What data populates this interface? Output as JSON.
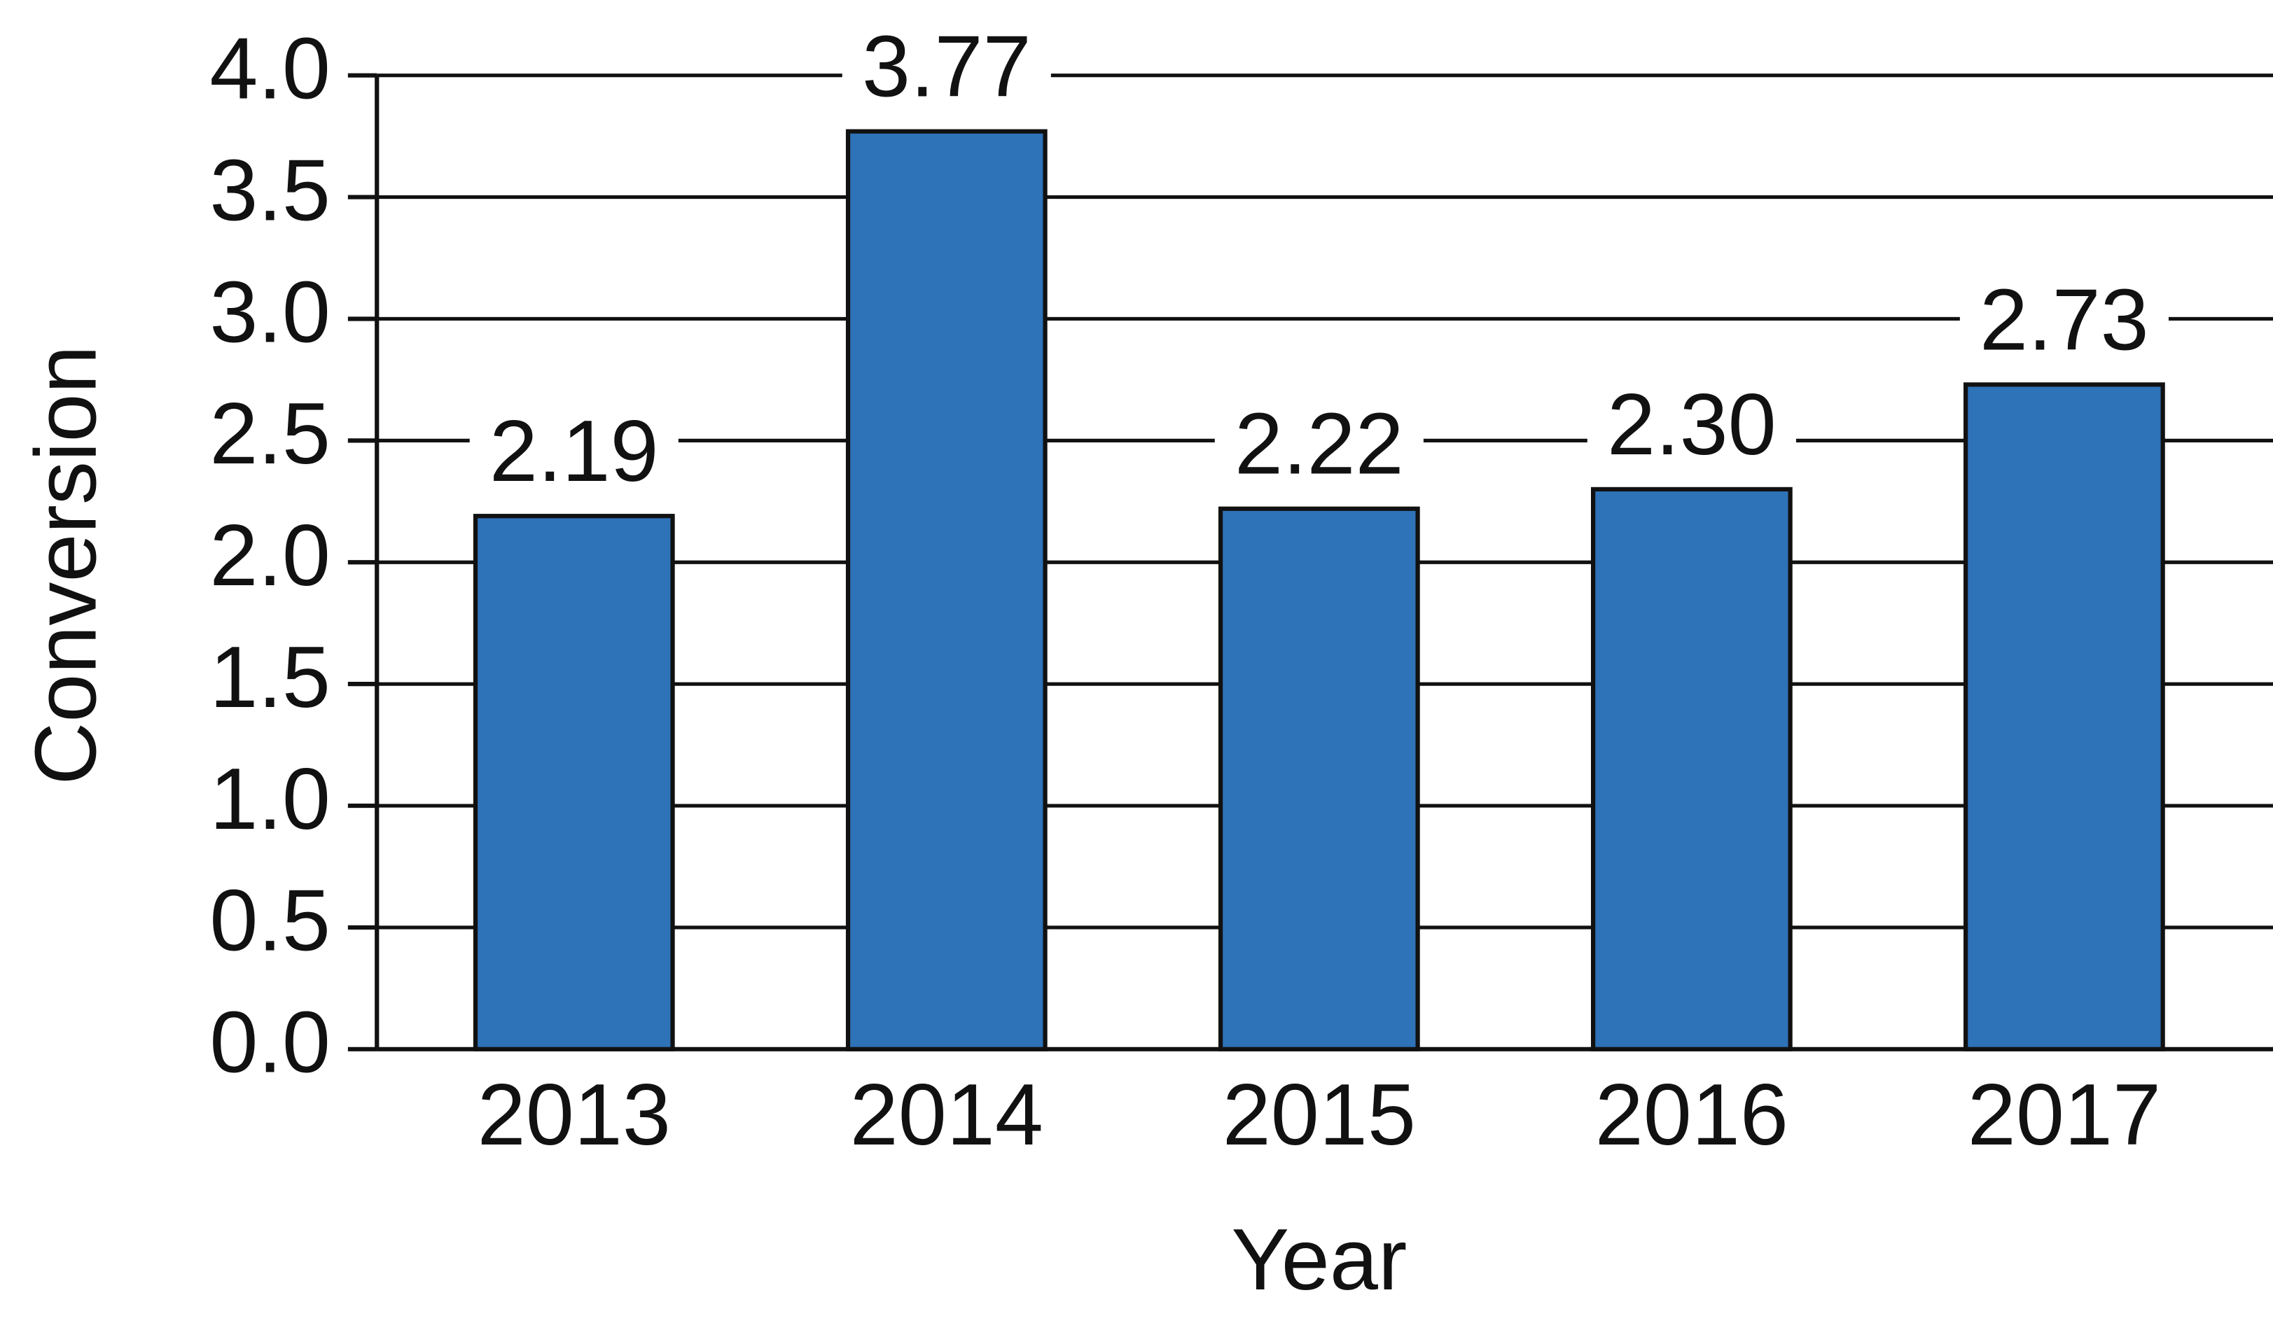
{
  "chart_data": {
    "type": "bar",
    "x_label": "Year",
    "y_label": "Conversion",
    "categories": [
      "2013",
      "2014",
      "2015",
      "2016",
      "2017"
    ],
    "values": [
      2.19,
      3.77,
      2.22,
      2.3,
      2.73
    ],
    "value_labels": [
      "2.19",
      "3.77",
      "2.22",
      "2.30",
      "2.73"
    ],
    "color": "#2e72b7",
    "ylim": [
      0,
      4
    ],
    "yticks": [
      {
        "value": 0,
        "label": "0.0"
      },
      {
        "value": 0.5,
        "label": "0.5"
      },
      {
        "value": 1,
        "label": "1.0"
      },
      {
        "value": 1.5,
        "label": "1.5"
      },
      {
        "value": 2,
        "label": "2.0"
      },
      {
        "value": 2.5,
        "label": "2.5"
      },
      {
        "value": 3,
        "label": "3.0"
      },
      {
        "value": 3.5,
        "label": "3.5"
      },
      {
        "value": 4,
        "label": "4.0"
      }
    ],
    "grid": true
  }
}
